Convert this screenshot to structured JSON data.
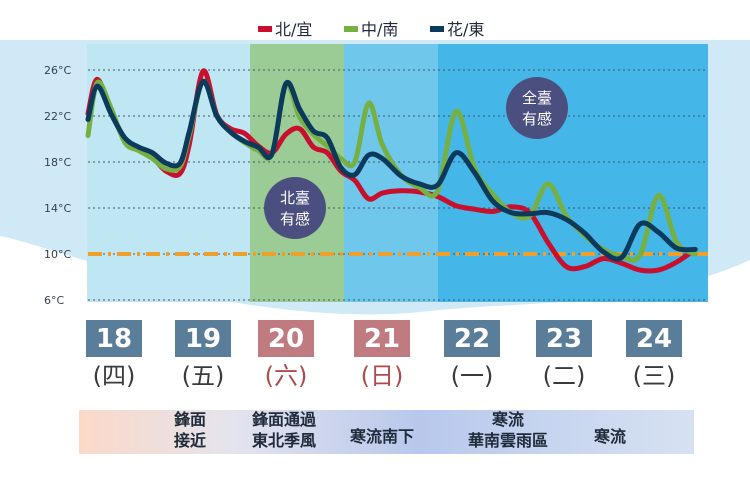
{
  "legend": [
    {
      "name": "北/宜",
      "color": "#c8102e"
    },
    {
      "name": "中/南",
      "color": "#76b043"
    },
    {
      "name": "花/東",
      "color": "#0b3a5c"
    }
  ],
  "colors": {
    "period_light": "#bfe6f3",
    "period_green": "#9ccc96",
    "period_mid": "#6fc8ec",
    "period_strong": "#45b6e8",
    "date_box": "#5a7d9a",
    "date_box_weekend": "#c07b80",
    "threshold": "#f0a02a",
    "bubble": "#4b4f80"
  },
  "annotations": {
    "north": [
      "北臺",
      "有感"
    ],
    "all": [
      "全臺",
      "有感"
    ]
  },
  "days": [
    {
      "date": "18",
      "weekday": "(四)",
      "weekend": false
    },
    {
      "date": "19",
      "weekday": "(五)",
      "weekend": false
    },
    {
      "date": "20",
      "weekday": "(六)",
      "weekend": true
    },
    {
      "date": "21",
      "weekday": "(日)",
      "weekend": true
    },
    {
      "date": "22",
      "weekday": "(一)",
      "weekend": false
    },
    {
      "date": "23",
      "weekday": "(二)",
      "weekend": false
    },
    {
      "date": "24",
      "weekday": "(三)",
      "weekend": false
    }
  ],
  "weather_bands": [
    {
      "lines": [
        "鋒面",
        "接近"
      ]
    },
    {
      "lines": [
        "鋒面通過",
        "東北季風"
      ]
    },
    {
      "lines": [
        "寒流南下"
      ]
    },
    {
      "lines": [
        "寒流",
        "華南雲雨區"
      ]
    },
    {
      "lines": [
        "寒流"
      ]
    }
  ],
  "chart_data": {
    "type": "line",
    "title": "",
    "xlabel": "",
    "ylabel": "",
    "ylim": [
      6,
      27
    ],
    "y_ticks": [
      "26°C",
      "22°C",
      "18°C",
      "14°C",
      "10°C",
      "6°C"
    ],
    "y_tick_values": [
      26,
      22,
      18,
      14,
      10,
      6
    ],
    "x_range": [
      0,
      7
    ],
    "x_categories": [
      "18",
      "19",
      "20",
      "21",
      "22",
      "23",
      "24"
    ],
    "grid": true,
    "legend_position": "top",
    "reference_line": {
      "value": 10,
      "style": "dashed"
    },
    "series": [
      {
        "name": "北/宜",
        "x": [
          0,
          0.1,
          0.25,
          0.4,
          0.55,
          0.7,
          0.85,
          1.0,
          1.1,
          1.25,
          1.4,
          1.55,
          1.7,
          1.85,
          2.0,
          2.15,
          2.3,
          2.45,
          2.6,
          2.75,
          2.9,
          3.05,
          3.2,
          3.4,
          3.6,
          3.8,
          4.0,
          4.2,
          4.4,
          4.6,
          4.8,
          5.0,
          5.2,
          5.4,
          5.6,
          5.8,
          6.0,
          6.2,
          6.4,
          6.6
        ],
        "values": [
          22.2,
          25.2,
          22.4,
          20.0,
          19.1,
          18.4,
          17.2,
          17.0,
          19.5,
          25.9,
          22.1,
          20.9,
          20.5,
          19.4,
          18.8,
          20.4,
          20.9,
          19.3,
          18.8,
          17.2,
          16.4,
          14.8,
          15.3,
          15.5,
          15.4,
          15.0,
          14.2,
          13.9,
          13.7,
          14.1,
          13.6,
          11.0,
          8.9,
          8.9,
          9.6,
          9.2,
          8.6,
          8.6,
          9.3,
          10.4
        ]
      },
      {
        "name": "中/南",
        "x": [
          0,
          0.1,
          0.25,
          0.4,
          0.55,
          0.7,
          0.85,
          1.0,
          1.1,
          1.25,
          1.4,
          1.55,
          1.7,
          1.85,
          2.0,
          2.15,
          2.3,
          2.45,
          2.6,
          2.75,
          2.9,
          3.05,
          3.2,
          3.4,
          3.6,
          3.8,
          4.0,
          4.2,
          4.4,
          4.6,
          4.8,
          5.0,
          5.2,
          5.4,
          5.6,
          5.8,
          6.0,
          6.2,
          6.4,
          6.6
        ],
        "values": [
          20.3,
          24.9,
          22.7,
          19.7,
          19.0,
          18.3,
          17.4,
          17.6,
          20.3,
          25.0,
          22.0,
          20.6,
          19.7,
          19.0,
          18.7,
          24.7,
          21.9,
          20.4,
          19.4,
          18.3,
          18.0,
          23.1,
          19.5,
          16.9,
          15.8,
          15.5,
          22.4,
          17.5,
          15.2,
          13.6,
          13.3,
          16.1,
          13.3,
          11.6,
          10.4,
          9.8,
          9.9,
          15.1,
          11.0,
          10.0
        ]
      },
      {
        "name": "花/東",
        "x": [
          0,
          0.1,
          0.25,
          0.4,
          0.55,
          0.7,
          0.85,
          1.0,
          1.1,
          1.25,
          1.4,
          1.55,
          1.7,
          1.85,
          2.0,
          2.15,
          2.3,
          2.45,
          2.6,
          2.75,
          2.9,
          3.05,
          3.2,
          3.4,
          3.6,
          3.8,
          4.0,
          4.2,
          4.4,
          4.6,
          4.8,
          5.0,
          5.2,
          5.4,
          5.6,
          5.8,
          6.0,
          6.2,
          6.4,
          6.6
        ],
        "values": [
          21.7,
          24.6,
          22.2,
          20.1,
          19.3,
          18.8,
          17.9,
          17.9,
          20.6,
          25.0,
          22.0,
          20.6,
          19.8,
          19.3,
          18.7,
          24.8,
          22.6,
          20.7,
          20.1,
          17.5,
          16.9,
          18.6,
          18.3,
          16.8,
          16.1,
          16.0,
          18.8,
          17.1,
          14.6,
          13.6,
          13.5,
          13.6,
          13.0,
          11.8,
          10.2,
          9.7,
          12.6,
          11.9,
          10.5,
          10.4
        ]
      }
    ]
  }
}
